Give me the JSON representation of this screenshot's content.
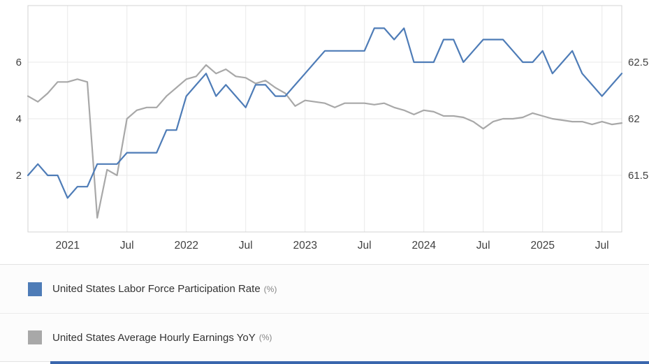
{
  "chart_data": {
    "type": "line",
    "x_start_month": "2020-09",
    "x_end_month": "2025-09",
    "x_tick_labels": [
      "2021",
      "Jul",
      "2022",
      "Jul",
      "2023",
      "Jul",
      "2024",
      "Jul",
      "2025",
      "Jul"
    ],
    "x_tick_month_indices": [
      4,
      10,
      16,
      22,
      28,
      34,
      40,
      46,
      52,
      58
    ],
    "left_axis": {
      "ticks": [
        2,
        4,
        6
      ],
      "range": [
        0,
        8
      ]
    },
    "right_axis": {
      "ticks": [
        61.5,
        62,
        62.5
      ],
      "range": [
        61,
        63
      ]
    },
    "grid": true,
    "legend_position": "bottom",
    "series": [
      {
        "name": "United States Labor Force Participation Rate",
        "unit": "%",
        "axis": "right",
        "color": "#4e7cb7",
        "data_name": "participation-rate-line",
        "values": [
          61.5,
          61.6,
          61.5,
          61.5,
          61.3,
          61.4,
          61.4,
          61.6,
          61.6,
          61.6,
          61.7,
          61.7,
          61.7,
          61.7,
          61.9,
          61.9,
          62.2,
          62.3,
          62.4,
          62.2,
          62.3,
          62.2,
          62.1,
          62.3,
          62.3,
          62.2,
          62.2,
          62.3,
          62.4,
          62.5,
          62.6,
          62.6,
          62.6,
          62.6,
          62.6,
          62.8,
          62.8,
          62.7,
          62.8,
          62.5,
          62.5,
          62.5,
          62.7,
          62.7,
          62.5,
          62.6,
          62.7,
          62.7,
          62.7,
          62.6,
          62.5,
          62.5,
          62.6,
          62.4,
          62.5,
          62.6,
          62.4,
          62.3,
          62.2,
          62.3,
          62.4
        ]
      },
      {
        "name": "United States Average Hourly Earnings YoY",
        "unit": "%",
        "axis": "left",
        "color": "#a8a8a8",
        "data_name": "hourly-earnings-line",
        "values": [
          4.8,
          4.6,
          4.9,
          5.3,
          5.3,
          5.4,
          5.3,
          0.5,
          2.2,
          2.0,
          4.0,
          4.3,
          4.4,
          4.4,
          4.8,
          5.1,
          5.4,
          5.5,
          5.9,
          5.6,
          5.75,
          5.5,
          5.45,
          5.25,
          5.35,
          5.1,
          4.9,
          4.45,
          4.65,
          4.6,
          4.55,
          4.4,
          4.55,
          4.55,
          4.55,
          4.5,
          4.55,
          4.4,
          4.3,
          4.15,
          4.3,
          4.25,
          4.1,
          4.1,
          4.05,
          3.9,
          3.65,
          3.9,
          4.0,
          4.0,
          4.05,
          4.2,
          4.1,
          4.0,
          3.95,
          3.9,
          3.9,
          3.8,
          3.9,
          3.8,
          3.85
        ]
      }
    ]
  },
  "legend": {
    "items": [
      {
        "label": "United States Labor Force Participation Rate",
        "unit_suffix": "(%)",
        "color": "#4e7cb7"
      },
      {
        "label": "United States Average Hourly Earnings YoY",
        "unit_suffix": "(%)",
        "color": "#a8a8a8"
      }
    ]
  },
  "colors": {
    "grid": "#e9e9e9",
    "axis_border": "#d3d3d3",
    "tick_text": "#404040",
    "legend_bg": "#fcfcfc",
    "legend_border": "#e3e3e3",
    "bottom_bar": "#3a66ad"
  }
}
